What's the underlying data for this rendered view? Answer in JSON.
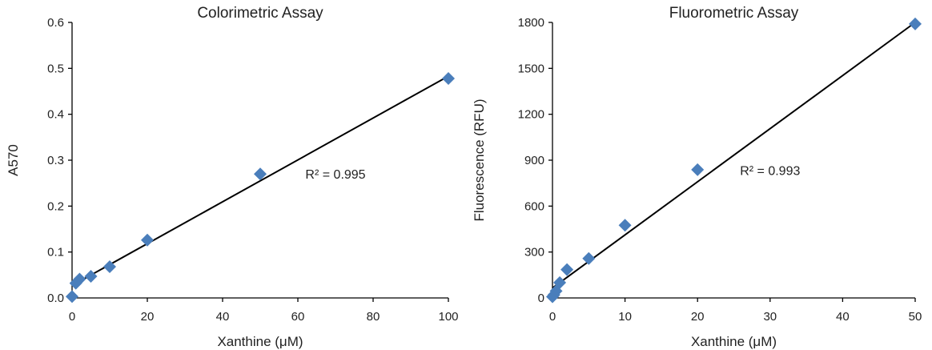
{
  "colors": {
    "marker": "#4a7ebb",
    "line": "#000000"
  },
  "chart_data": [
    {
      "type": "scatter",
      "title": "Colorimetric Assay",
      "xlabel": "Xanthine (μM)",
      "ylabel": "A570",
      "xlim": [
        0,
        100
      ],
      "ylim": [
        0,
        0.6
      ],
      "xticks": [
        0,
        20,
        40,
        60,
        80,
        100
      ],
      "xtick_labels": [
        "0",
        "20",
        "40",
        "60",
        "80",
        "100"
      ],
      "yticks": [
        0,
        0.1,
        0.2,
        0.3,
        0.4,
        0.5,
        0.6
      ],
      "ytick_labels": [
        "0.0",
        "0.1",
        "0.2",
        "0.3",
        "0.4",
        "0.5",
        "0.6"
      ],
      "series": [
        {
          "x": [
            0,
            1,
            2,
            5,
            10,
            20,
            50,
            100
          ],
          "y": [
            0.003,
            0.032,
            0.041,
            0.047,
            0.068,
            0.126,
            0.27,
            0.478
          ]
        }
      ],
      "trendline": {
        "type": "linear",
        "x": [
          0,
          100
        ],
        "y": [
          0.027,
          0.483
        ]
      },
      "annotation": {
        "text": "R² = 0.995",
        "x": 70,
        "y": 0.27
      },
      "grid": false
    },
    {
      "type": "scatter",
      "title": "Fluorometric Assay",
      "xlabel": "Xanthine (μM)",
      "ylabel": "Fluorescence (RFU)",
      "xlim": [
        0,
        50
      ],
      "ylim": [
        0,
        1800
      ],
      "xticks": [
        0,
        10,
        20,
        30,
        40,
        50
      ],
      "xtick_labels": [
        "0",
        "10",
        "20",
        "30",
        "40",
        "50"
      ],
      "yticks": [
        0,
        300,
        600,
        900,
        1200,
        1500,
        1800
      ],
      "ytick_labels": [
        "0",
        "300",
        "600",
        "900",
        "1200",
        "1500",
        "1800"
      ],
      "series": [
        {
          "x": [
            0,
            0.2,
            0.5,
            1,
            2,
            5,
            10,
            20,
            50
          ],
          "y": [
            8,
            20,
            45,
            100,
            185,
            258,
            475,
            838,
            1790
          ]
        }
      ],
      "trendline": {
        "type": "linear",
        "x": [
          0,
          50
        ],
        "y": [
          65,
          1800
        ]
      },
      "annotation": {
        "text": "R² = 0.993",
        "x": 30,
        "y": 835
      },
      "grid": false
    }
  ]
}
